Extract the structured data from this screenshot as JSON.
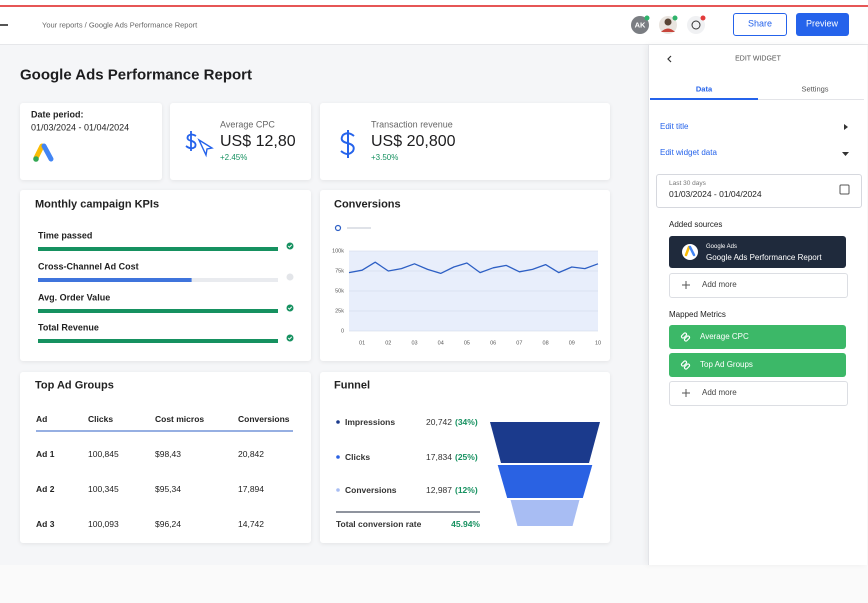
{
  "header": {
    "breadcrumb": "Your reports / Google Ads Performance Report",
    "avatar": "AK",
    "share": "Share",
    "preview": "Preview"
  },
  "report": {
    "title": "Google Ads Performance Report",
    "date_label": "Date period:",
    "date_range": "01/03/2024 - 01/04/2024",
    "metrics": [
      {
        "label": "Average CPC",
        "value": "US$ 12,80",
        "change": "+2.45%"
      },
      {
        "label": "Transaction revenue",
        "value": "US$ 20,800",
        "change": "+3.50%"
      }
    ]
  },
  "chart_data": [
    {
      "type": "progress",
      "title": "Monthly campaign KPIs",
      "categories": [
        "Time passed",
        "Cross-Channel Ad Cost",
        "Avg. Order Value",
        "Total Revenue"
      ],
      "values": [
        100,
        64,
        100,
        100
      ],
      "xlim": [
        0,
        100
      ],
      "colors": [
        "#169160",
        "#3f74dc",
        "#169160",
        "#169160"
      ]
    },
    {
      "type": "line",
      "title": "Conversions",
      "categories": [
        null,
        "01",
        null,
        "02",
        null,
        "03",
        null,
        "04",
        null,
        "05",
        null,
        "06",
        null,
        "07",
        null,
        "08",
        null,
        "09",
        null,
        "10"
      ],
      "values": [
        73000,
        76000,
        86000,
        75000,
        78000,
        84000,
        77000,
        72000,
        80000,
        85000,
        73000,
        79000,
        82000,
        74000,
        77000,
        83000,
        73000,
        80000,
        78000,
        84000
      ],
      "color": "#2d5fc4",
      "grid": true,
      "ylim": [
        0,
        100000
      ],
      "yticks": [
        0,
        {
          "value": 25000,
          "label": "25k"
        },
        {
          "value": 50000,
          "label": "50k"
        },
        {
          "value": 75000,
          "label": "75k"
        },
        {
          "value": 100000,
          "label": "100k"
        }
      ]
    },
    {
      "type": "funnel",
      "title": "Funnel",
      "categories": [
        "Impressions",
        "Clicks",
        "Conversions"
      ],
      "values": [
        20742,
        17834,
        12987
      ],
      "value_labels": [
        "20,742",
        "17,834",
        "12,987"
      ],
      "shares": [
        "(34%)",
        "(25%)",
        "(12%)"
      ],
      "colors": [
        "#1b3a8c",
        "#2a62e3",
        "#a8bdf3"
      ],
      "total_label": "Total conversion rate",
      "total_value": "45.94%"
    }
  ],
  "table": {
    "title": "Top Ad Groups",
    "columns": [
      "Ad",
      "Clicks",
      "Cost micros",
      "Conversions"
    ],
    "rows": [
      [
        "Ad 1",
        "100,845",
        "$98,43",
        "20,842"
      ],
      [
        "Ad 2",
        "100,345",
        "$95,34",
        "17,894"
      ],
      [
        "Ad 3",
        "100,093",
        "$96,24",
        "14,742"
      ]
    ]
  },
  "panel": {
    "heading": "EDIT WIDGET",
    "tabs": [
      "Data",
      "Settings"
    ],
    "edit_title": "Edit title",
    "edit_data": "Edit widget data",
    "date_hint": "Last 30 days",
    "date_range": "01/03/2024 - 01/04/2024",
    "sources_label": "Added sources",
    "source_type": "Google Ads",
    "source_name": "Google Ads Performance Report",
    "add_more": "Add more",
    "metrics_label": "Mapped Metrics",
    "metrics": [
      "Average CPC",
      "Top Ad Groups"
    ],
    "add_more_metrics": "Add more"
  }
}
